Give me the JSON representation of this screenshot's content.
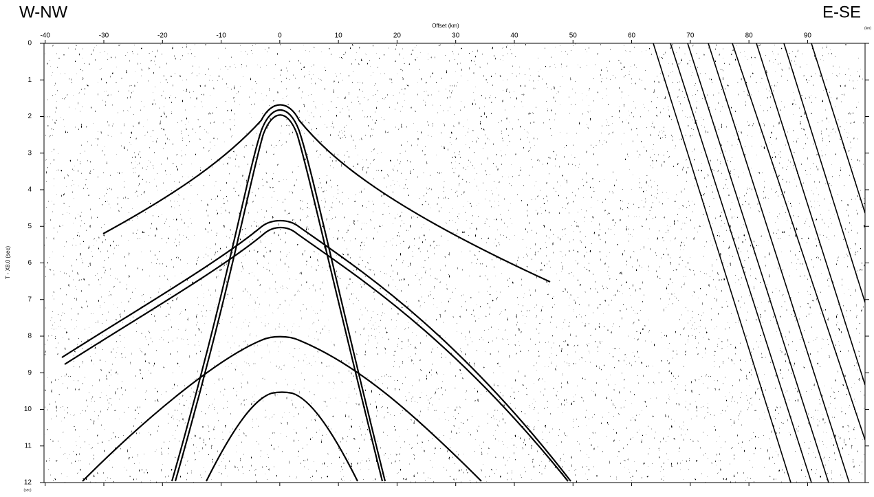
{
  "chart_data": {
    "type": "seismic-section",
    "left_label": "W-NW",
    "right_label": "E-SE",
    "x_label": "Offset (km)",
    "x_unit": "(km)",
    "y_label": "T - X8.0 (sec)",
    "y_unit": "(sec)",
    "xlim": [
      -40.2,
      99.8
    ],
    "xticks": [
      -40,
      -30,
      -20,
      -10,
      0,
      10,
      20,
      30,
      40,
      50,
      60,
      70,
      80,
      90
    ],
    "ylim": [
      0,
      12
    ],
    "y_inverted": true,
    "yticks": [
      0,
      1,
      2,
      3,
      4,
      5,
      6,
      7,
      8,
      9,
      10,
      11,
      12
    ]
  }
}
